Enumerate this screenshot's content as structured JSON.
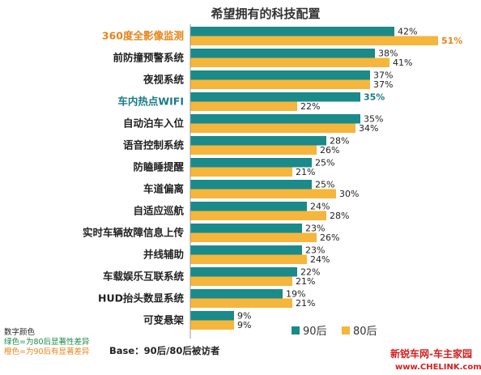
{
  "chart_data": {
    "type": "bar",
    "orientation": "horizontal",
    "title": "希望拥有的科技配置",
    "categories": [
      "360度全影像监测",
      "前防撞预警系统",
      "夜视系统",
      "车内热点WIFI",
      "自动泊车入位",
      "语音控制系统",
      "防瞌睡提醒",
      "车道偏离",
      "自适应巡航",
      "实时车辆故障信息上传",
      "并线辅助",
      "车载娱乐互联系统",
      "HUD抬头数显系统",
      "可变悬架"
    ],
    "category_colors": [
      "#e8841a",
      "#222222",
      "#222222",
      "#1a7a86",
      "#222222",
      "#222222",
      "#222222",
      "#222222",
      "#222222",
      "#222222",
      "#222222",
      "#222222",
      "#222222",
      "#222222"
    ],
    "series": [
      {
        "name": "90后",
        "color": "#1a8a8a",
        "values": [
          42,
          38,
          37,
          35,
          35,
          28,
          25,
          25,
          24,
          23,
          23,
          22,
          19,
          9
        ],
        "labels": [
          "42%",
          "38%",
          "37%",
          "35%",
          "35%",
          "28%",
          "25%",
          "25%",
          "24%",
          "23%",
          "23%",
          "22%",
          "19%",
          "9%"
        ],
        "label_colors": [
          "#222222",
          "#222222",
          "#222222",
          "#1a7a86",
          "#222222",
          "#222222",
          "#222222",
          "#222222",
          "#222222",
          "#222222",
          "#222222",
          "#222222",
          "#222222",
          "#222222"
        ],
        "label_bold": [
          false,
          false,
          false,
          true,
          false,
          false,
          false,
          false,
          false,
          false,
          false,
          false,
          false,
          false
        ]
      },
      {
        "name": "80后",
        "color": "#f5b63b",
        "values": [
          51,
          41,
          37,
          22,
          34,
          26,
          21,
          30,
          28,
          26,
          24,
          21,
          21,
          9
        ],
        "labels": [
          "51%",
          "41%",
          "37%",
          "22%",
          "34%",
          "26%",
          "21%",
          "30%",
          "28%",
          "26%",
          "24%",
          "21%",
          "21%",
          "9%"
        ],
        "label_colors": [
          "#e8841a",
          "#222222",
          "#222222",
          "#222222",
          "#222222",
          "#222222",
          "#222222",
          "#222222",
          "#222222",
          "#222222",
          "#222222",
          "#222222",
          "#222222",
          "#222222"
        ],
        "label_bold": [
          true,
          false,
          false,
          false,
          false,
          false,
          false,
          false,
          false,
          false,
          false,
          false,
          false,
          false
        ]
      }
    ],
    "legend_position": "bottom-right",
    "grid": false
  },
  "notes": [
    {
      "text": "数字颜色",
      "color": "#222222"
    },
    {
      "text": "绿色=为80后显著性差异",
      "color": "#1a8a4a"
    },
    {
      "text": "橙色=为90后有显著差异",
      "color": "#e8841a"
    }
  ],
  "base_note": "Base：90后/80后被访者",
  "watermark": {
    "line1": "新锐车网-车主家园",
    "line2": "www.CHELINK.com"
  }
}
